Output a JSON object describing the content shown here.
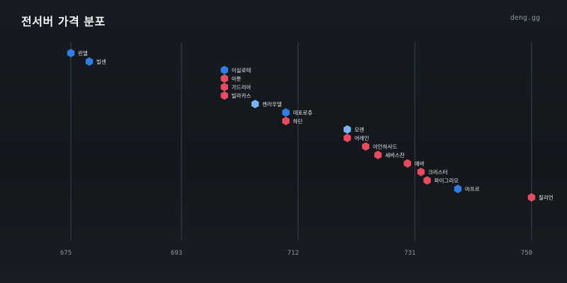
{
  "header": {
    "title": "전서버 가격 분포",
    "brand": "deng.gg"
  },
  "colors": {
    "red": "#e84a5f",
    "blue": "#2f7ee8",
    "lightblue": "#7bb3f5",
    "grid": "#39414b",
    "background": "#15191e"
  },
  "chart_data": {
    "type": "scatter",
    "title": "전서버 가격 분포",
    "xlabel": "",
    "ylabel": "",
    "xlim": [
      675,
      750
    ],
    "xticks": [
      675,
      693,
      712,
      731,
      750
    ],
    "grid": "vertical",
    "legend": "none",
    "points": [
      {
        "name": "린델",
        "price": 675.0,
        "color": "blue"
      },
      {
        "name": "빌센",
        "price": 678.0,
        "color": "blue"
      },
      {
        "name": "이실로테",
        "price": 700.0,
        "color": "blue"
      },
      {
        "name": "아툰",
        "price": 700.0,
        "color": "red"
      },
      {
        "name": "가드리아",
        "price": 700.0,
        "color": "red"
      },
      {
        "name": "빌라카스",
        "price": 700.0,
        "color": "red"
      },
      {
        "name": "켄라우델",
        "price": 705.0,
        "color": "lightblue"
      },
      {
        "name": "데포로쥬",
        "price": 710.0,
        "color": "blue"
      },
      {
        "name": "하딘",
        "price": 710.0,
        "color": "red"
      },
      {
        "name": "오렌",
        "price": 720.0,
        "color": "lightblue"
      },
      {
        "name": "어레인",
        "price": 720.0,
        "color": "red"
      },
      {
        "name": "아인하사드",
        "price": 723.0,
        "color": "red"
      },
      {
        "name": "세바스찬",
        "price": 725.0,
        "color": "red"
      },
      {
        "name": "에바",
        "price": 729.8,
        "color": "red"
      },
      {
        "name": "크리스터",
        "price": 732.0,
        "color": "red"
      },
      {
        "name": "파이그리오",
        "price": 733.0,
        "color": "red"
      },
      {
        "name": "마프르",
        "price": 738.0,
        "color": "blue"
      },
      {
        "name": "질리언",
        "price": 750.0,
        "color": "red"
      }
    ]
  }
}
